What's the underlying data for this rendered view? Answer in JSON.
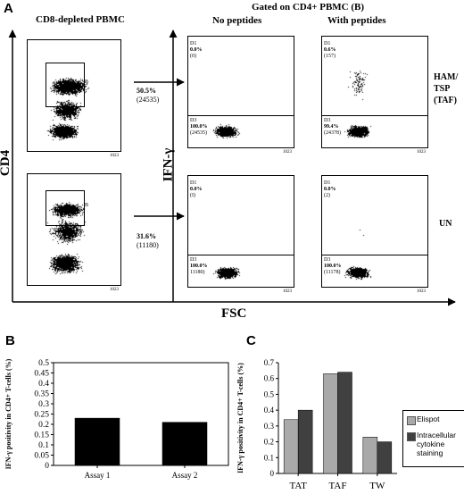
{
  "panelA": {
    "letter": "A",
    "left_header": "CD8-depleted PBMC",
    "gated_header": "Gated on CD4+ PBMC (B)",
    "col1_header": "No peptides",
    "col2_header": "With peptides",
    "ylabel_left": "CD4",
    "ylabel_mid": "IFN-γ",
    "xlabel": "FSC",
    "tick_1023": "1023",
    "gate_letter": "B",
    "rows": [
      {
        "gate_pct": "50.5%",
        "gate_count": "(24535)",
        "condition_lines": [
          "HAM/",
          "TSP",
          "(TAF)"
        ],
        "no_pep": {
          "d1_label": "D1",
          "d1_pct": "0.0%",
          "d1_count": "(0)",
          "d3_label": "D3",
          "d3_pct": "100.0%",
          "d3_count": "(24535)"
        },
        "with_pep": {
          "d1_label": "D1",
          "d1_pct": "0.6%",
          "d1_count": "(157)",
          "d3_label": "D3",
          "d3_pct": "99.4%",
          "d3_count": "(24378)"
        }
      },
      {
        "gate_pct": "31.6%",
        "gate_count": "(11180)",
        "condition_lines": [
          "UN"
        ],
        "no_pep": {
          "d1_label": "D1",
          "d1_pct": "0.0%",
          "d1_count": "(I)",
          "d3_label": "D3",
          "d3_pct": "100.0%",
          "d3_count": "11180)"
        },
        "with_pep": {
          "d1_label": "D1",
          "d1_pct": "0.0%",
          "d1_count": "(2)",
          "d3_label": "D3",
          "d3_pct": "100.0%",
          "d3_count": "(11178)"
        }
      }
    ]
  },
  "panelB": {
    "letter": "B"
  },
  "panelC": {
    "letter": "C"
  },
  "chart_data": [
    {
      "type": "bar",
      "panel": "B",
      "categories": [
        "Assay 1",
        "Assay 2"
      ],
      "values": [
        0.23,
        0.21
      ],
      "ylabel": "IFN-γ positivity in CD4+ T-cells (%)",
      "xlabel": "",
      "ylim": [
        0,
        0.5
      ],
      "yticks": [
        0,
        0.05,
        0.1,
        0.15,
        0.2,
        0.25,
        0.3,
        0.35,
        0.4,
        0.45,
        0.5
      ],
      "ytick_labels": [
        "0",
        "0.05",
        "0.1",
        "0.15",
        "0.2",
        "0.25",
        "0.3",
        "0.35",
        "0.4",
        "0.45",
        "0.5"
      ],
      "bar_color": "#000000",
      "grid": false
    },
    {
      "type": "bar",
      "panel": "C",
      "categories": [
        "TAT",
        "TAF",
        "TW"
      ],
      "series": [
        {
          "name": "Elispot",
          "values": [
            0.34,
            0.63,
            0.23
          ],
          "color": "#a9a9a9"
        },
        {
          "name": "Intracellular cytokine staining",
          "values": [
            0.4,
            0.64,
            0.2
          ],
          "color": "#404040"
        }
      ],
      "ylabel": "IFN-γ positivity in CD4+ T-cells (%)",
      "xlabel": "",
      "ylim": [
        0,
        0.7
      ],
      "yticks": [
        0,
        0.1,
        0.2,
        0.3,
        0.4,
        0.5,
        0.6,
        0.7
      ],
      "ytick_labels": [
        "0",
        "0.1",
        "0.2",
        "0.3",
        "0.4",
        "0.5",
        "0.6",
        "0.7"
      ],
      "legend_position": "right",
      "grid": false
    }
  ]
}
